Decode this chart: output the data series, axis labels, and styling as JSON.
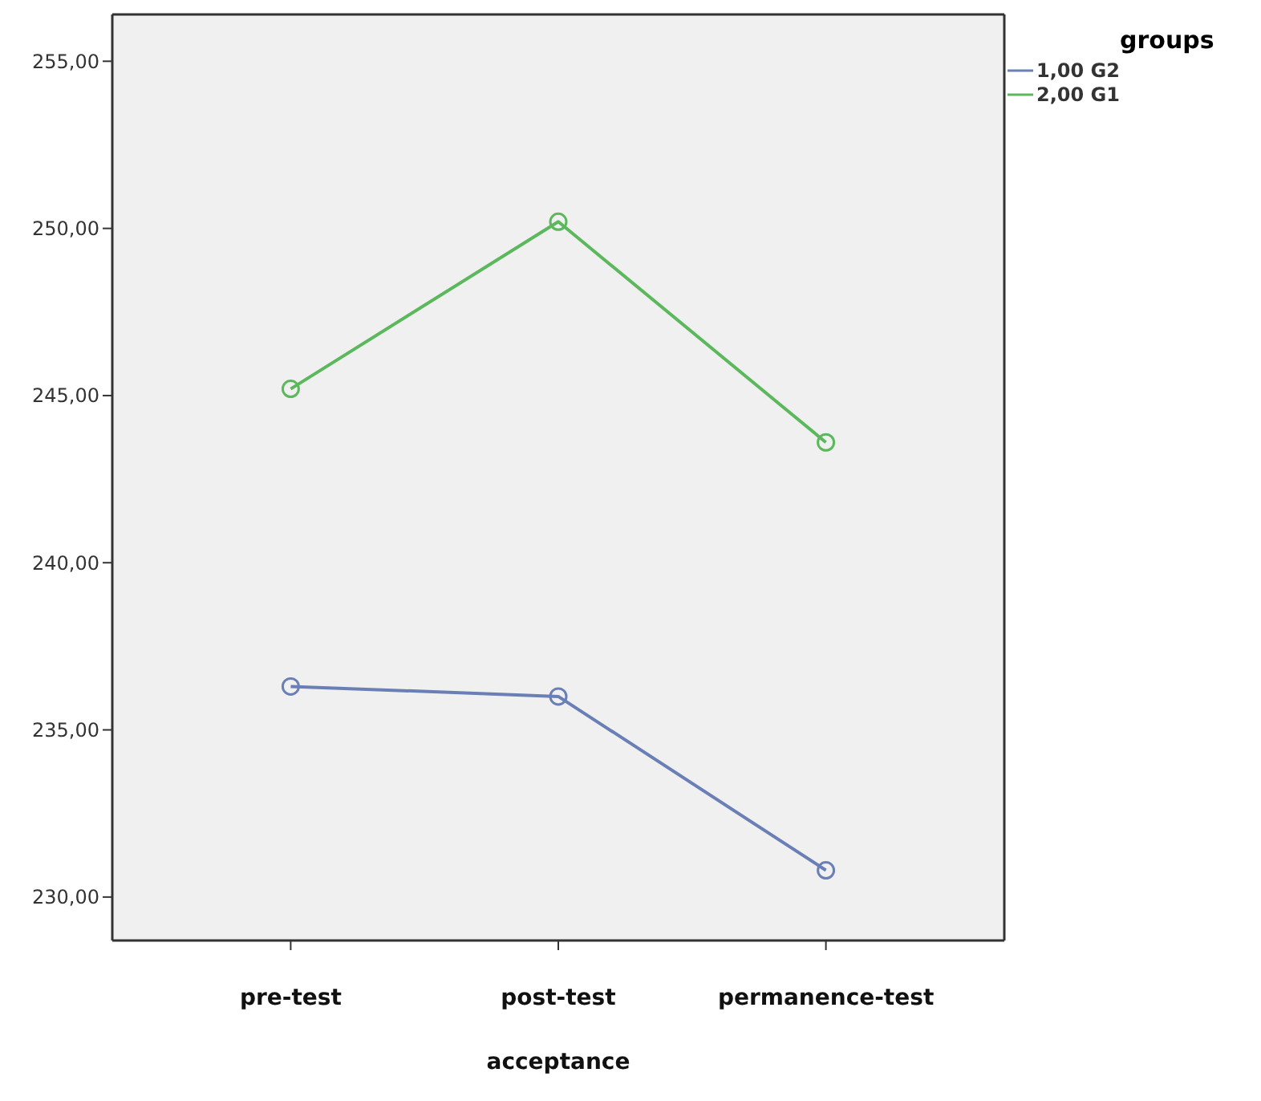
{
  "chart_data": {
    "type": "line",
    "xlabel": "acceptance",
    "legend_title": "groups",
    "categories": [
      "pre-test",
      "post-test",
      "permanence-test"
    ],
    "series": [
      {
        "name": "1,00 G2",
        "color": "#6a7fb5",
        "values": [
          236.3,
          236.0,
          230.8
        ]
      },
      {
        "name": "2,00 G1",
        "color": "#5cb85c",
        "values": [
          245.2,
          250.2,
          243.6
        ]
      }
    ],
    "ylim": [
      228.7,
      256.4
    ],
    "yticks": [
      {
        "value": 230,
        "label": "230,00"
      },
      {
        "value": 235,
        "label": "235,00"
      },
      {
        "value": 240,
        "label": "240,00"
      },
      {
        "value": 245,
        "label": "245,00"
      },
      {
        "value": 250,
        "label": "250,00"
      },
      {
        "value": 255,
        "label": "255,00"
      }
    ],
    "grid": false,
    "legend": "top right",
    "marker": "circle",
    "line_style": "solid"
  }
}
